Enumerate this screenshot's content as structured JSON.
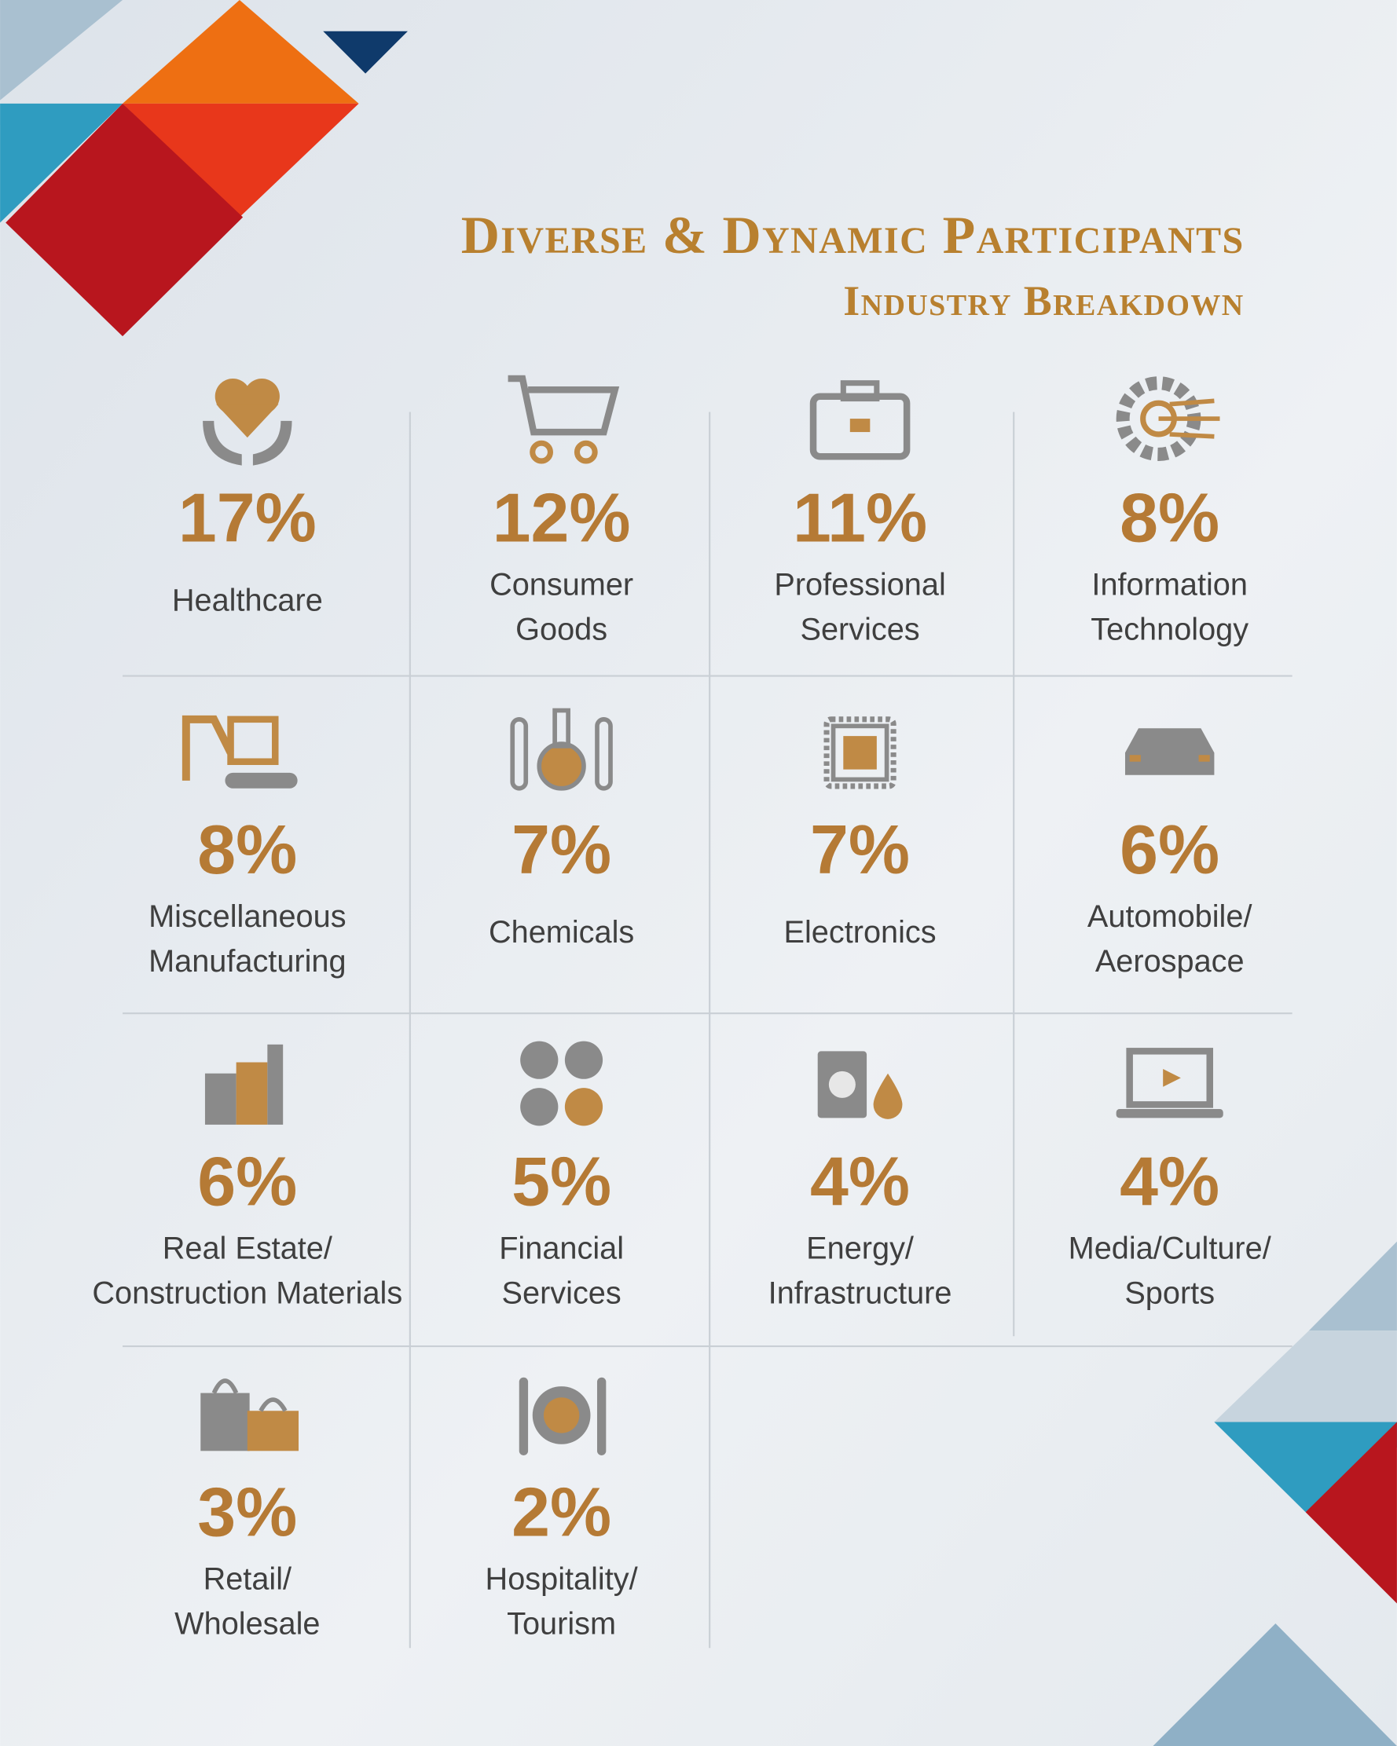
{
  "header": {
    "title": "Diverse & Dynamic Participants",
    "subtitle": "Industry Breakdown"
  },
  "items": [
    {
      "percent": "17%",
      "label_lines": [
        "Healthcare"
      ]
    },
    {
      "percent": "12%",
      "label_lines": [
        "Consumer",
        "Goods"
      ]
    },
    {
      "percent": "11%",
      "label_lines": [
        "Professional",
        "Services"
      ]
    },
    {
      "percent": "8%",
      "label_lines": [
        "Information",
        "Technology"
      ]
    },
    {
      "percent": "8%",
      "label_lines": [
        "Miscellaneous",
        "Manufacturing"
      ]
    },
    {
      "percent": "7%",
      "label_lines": [
        "Chemicals"
      ]
    },
    {
      "percent": "7%",
      "label_lines": [
        "Electronics"
      ]
    },
    {
      "percent": "6%",
      "label_lines": [
        "Automobile/",
        "Aerospace"
      ]
    },
    {
      "percent": "6%",
      "label_lines": [
        "Real Estate/",
        "Construction Materials"
      ]
    },
    {
      "percent": "5%",
      "label_lines": [
        "Financial",
        "Services"
      ]
    },
    {
      "percent": "4%",
      "label_lines": [
        "Energy/",
        "Infrastructure"
      ]
    },
    {
      "percent": "4%",
      "label_lines": [
        "Media/Culture/",
        "Sports"
      ]
    },
    {
      "percent": "3%",
      "label_lines": [
        "Retail/",
        "Wholesale"
      ]
    },
    {
      "percent": "2%",
      "label_lines": [
        "Hospitality/",
        "Tourism"
      ]
    }
  ]
}
